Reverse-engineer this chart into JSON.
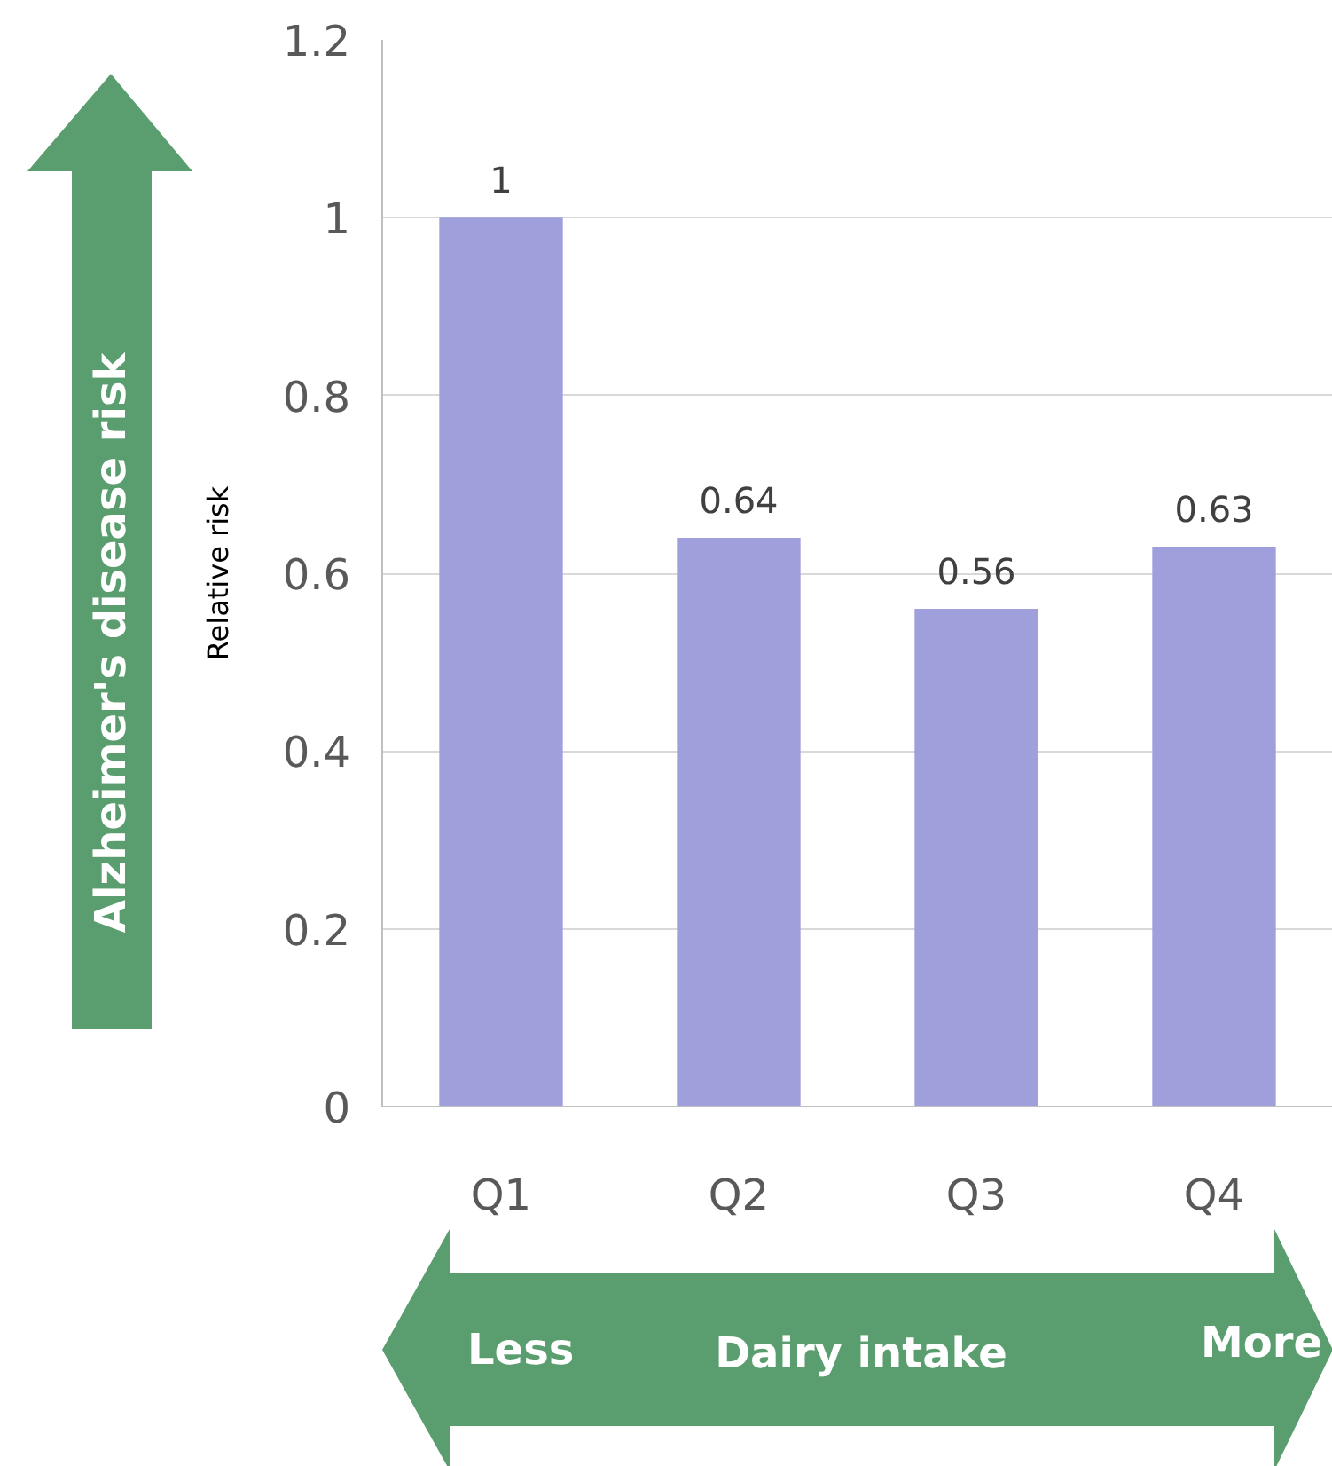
{
  "chart_data": {
    "type": "bar",
    "ylabel": "Relative risk",
    "categories": [
      "Q1",
      "Q2",
      "Q3",
      "Q4"
    ],
    "values": [
      1,
      0.64,
      0.56,
      0.63
    ],
    "color": "#9f9fdc",
    "ylim": [
      0,
      1.2
    ],
    "yticks": [
      0,
      0.2,
      0.4,
      0.6,
      0.8,
      1,
      1.2
    ],
    "grid": "y",
    "data_labels": true,
    "annotations": [
      "Alzheimer's disease risk",
      "Less",
      "Dairy intake",
      "More"
    ]
  }
}
